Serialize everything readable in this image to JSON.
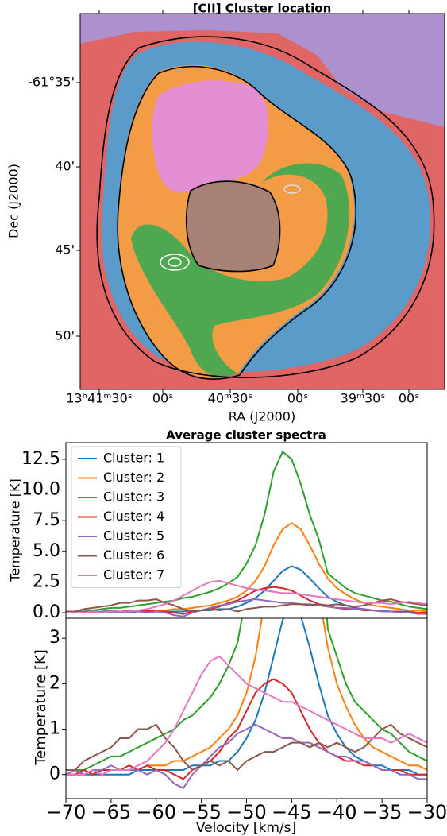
{
  "chart_data": [
    {
      "type": "map",
      "title": "[CII] Cluster location",
      "xlabel": "RA (J2000)",
      "ylabel": "Dec (J2000)",
      "xticks": [
        "13ʰ41ᵐ30ˢ",
        "00ˢ",
        "40ᵐ30ˢ",
        "00ˢ",
        "39ᵐ30ˢ",
        "00ˢ"
      ],
      "yticks": [
        "-61°35'",
        "40'",
        "45'",
        "50'"
      ]
    },
    {
      "type": "line",
      "title": "Average cluster spectra",
      "ylabel": "Temperature [K]",
      "x": [
        -70,
        -69,
        -68,
        -67,
        -66,
        -65,
        -64,
        -63,
        -62,
        -61,
        -60,
        -59,
        -58,
        -57,
        -56,
        -55,
        -54,
        -53,
        -52,
        -51,
        -50,
        -49,
        -48,
        -47,
        -46,
        -45,
        -44,
        -43,
        -42,
        -41,
        -40,
        -39,
        -38,
        -37,
        -36,
        -35,
        -34,
        -33,
        -32,
        -31,
        -30
      ],
      "xlim": [
        -70,
        -30
      ],
      "ylim": [
        -0.45,
        13.85
      ],
      "yticks": [
        {
          "value": 0,
          "label": "0.0"
        },
        {
          "value": 2.5,
          "label": "2.5"
        },
        {
          "value": 5,
          "label": "5.0"
        },
        {
          "value": 7.5,
          "label": "7.5"
        },
        {
          "value": 10,
          "label": "10.0"
        },
        {
          "value": 12.5,
          "label": "12.5"
        }
      ],
      "legend": "upper left",
      "series": [
        {
          "name": "Cluster: 1",
          "color": "#1f77b4",
          "values": [
            0,
            0,
            0,
            0,
            0,
            0,
            0,
            0,
            0.1,
            0.1,
            0.1,
            0.1,
            0.1,
            0.1,
            0.2,
            0.2,
            0.2,
            0.3,
            0.3,
            0.5,
            0.8,
            1.2,
            1.8,
            2.6,
            3.4,
            3.8,
            3.5,
            2.8,
            2.0,
            1.3,
            0.9,
            0.6,
            0.4,
            0.3,
            0.2,
            0.2,
            0.1,
            0.1,
            0.1,
            0,
            0
          ]
        },
        {
          "name": "Cluster: 2",
          "color": "#ff7f0e",
          "values": [
            0,
            0,
            0,
            0.1,
            0.1,
            0.1,
            0.1,
            0.1,
            0.1,
            0.2,
            0.2,
            0.2,
            0.3,
            0.3,
            0.4,
            0.5,
            0.6,
            0.8,
            1.0,
            1.3,
            1.8,
            2.6,
            3.8,
            5.5,
            6.8,
            7.3,
            6.8,
            5.5,
            4.0,
            2.8,
            2.0,
            1.5,
            1.1,
            0.8,
            0.6,
            0.5,
            0.4,
            0.3,
            0.2,
            0.2,
            0.1
          ]
        },
        {
          "name": "Cluster: 3",
          "color": "#2ca02c",
          "values": [
            0,
            0.1,
            0.1,
            0.2,
            0.3,
            0.4,
            0.4,
            0.5,
            0.6,
            0.7,
            0.8,
            0.9,
            1.0,
            1.2,
            1.3,
            1.5,
            1.7,
            2.0,
            2.4,
            2.9,
            4.0,
            5.5,
            8.0,
            11.5,
            13.1,
            12.5,
            10.5,
            8.0,
            6.0,
            3.2,
            2.6,
            2.0,
            1.6,
            1.4,
            1.2,
            1.0,
            0.9,
            0.7,
            0.5,
            0.4,
            0.3
          ]
        },
        {
          "name": "Cluster: 4",
          "color": "#d62728",
          "values": [
            0,
            0,
            0.1,
            0,
            0.1,
            0.1,
            0.1,
            0.2,
            0.1,
            0.2,
            0.1,
            0.1,
            0,
            -0.1,
            0.1,
            0.2,
            0.3,
            0.5,
            0.8,
            1.0,
            1.4,
            1.8,
            2.0,
            2.1,
            2.0,
            1.8,
            1.4,
            1.0,
            0.7,
            0.5,
            0.4,
            0.3,
            0.3,
            0.2,
            0.2,
            0.1,
            0.1,
            0.1,
            0,
            0,
            0
          ]
        },
        {
          "name": "Cluster: 5",
          "color": "#9467bd",
          "values": [
            0,
            0.1,
            0,
            0.1,
            0.1,
            0.2,
            0.1,
            0.1,
            0.1,
            0,
            0.1,
            0,
            -0.2,
            -0.3,
            0,
            0.2,
            0.4,
            0.6,
            0.7,
            0.9,
            1.0,
            1.1,
            1.0,
            0.9,
            0.8,
            0.8,
            0.7,
            0.7,
            0.6,
            0.5,
            0.4,
            0.4,
            0.3,
            0.3,
            0.2,
            0.1,
            0.1,
            0,
            0,
            -0.1,
            -0.1
          ]
        },
        {
          "name": "Cluster: 6",
          "color": "#8c564b",
          "values": [
            0.1,
            0.1,
            0.3,
            0.4,
            0.5,
            0.6,
            0.8,
            0.8,
            1.0,
            1.0,
            1.1,
            0.8,
            0.6,
            0.3,
            0.1,
            0.2,
            0.3,
            0.2,
            0.3,
            0.1,
            0.3,
            0.4,
            0.5,
            0.5,
            0.6,
            0.7,
            0.7,
            0.6,
            0.7,
            0.6,
            0.7,
            0.6,
            0.5,
            0.6,
            0.8,
            1.0,
            1.1,
            0.9,
            0.8,
            0.7,
            0.6
          ]
        },
        {
          "name": "Cluster: 7",
          "color": "#e377c2",
          "values": [
            0,
            0,
            0,
            0.1,
            0,
            0.1,
            0.1,
            0.1,
            0.2,
            0.3,
            0.5,
            0.7,
            1.0,
            1.4,
            1.8,
            2.2,
            2.5,
            2.6,
            2.4,
            2.2,
            2.0,
            1.9,
            1.8,
            1.7,
            1.6,
            1.6,
            1.5,
            1.4,
            1.3,
            1.2,
            1.1,
            1.0,
            0.9,
            0.8,
            0.8,
            0.8,
            0.7,
            0.8,
            0.9,
            0.8,
            0.7
          ]
        }
      ]
    },
    {
      "type": "line",
      "ylabel": "Temperature [K]",
      "xlabel": "Velocity [km/s]",
      "xlim": [
        -70,
        -30
      ],
      "ylim": [
        -0.53,
        3.44
      ],
      "yticks": [
        0,
        1,
        2,
        3
      ],
      "xticks": [
        {
          "value": -70,
          "label": "−70"
        },
        {
          "value": -65,
          "label": "−65"
        },
        {
          "value": -60,
          "label": "−60"
        },
        {
          "value": -55,
          "label": "−55"
        },
        {
          "value": -50,
          "label": "−50"
        },
        {
          "value": -45,
          "label": "−45"
        },
        {
          "value": -40,
          "label": "−40"
        },
        {
          "value": -35,
          "label": "−35"
        },
        {
          "value": -30,
          "label": "−30"
        }
      ]
    }
  ]
}
